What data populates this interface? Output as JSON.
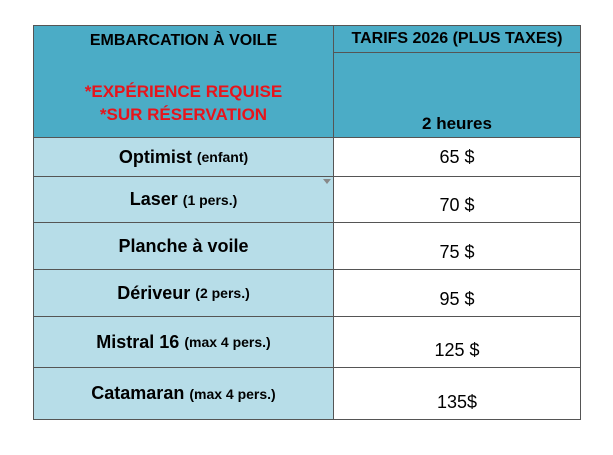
{
  "header": {
    "left_title": "EMBARCATION À VOILE",
    "notes": [
      "*EXPÉRIENCE REQUISE",
      "*SUR RÉSERVATION"
    ],
    "right_title": "TARIFS 2026 (PLUS TAXES)",
    "duration": "2 heures"
  },
  "table": {
    "rows": [
      {
        "name": "Optimist",
        "detail": "(enfant)",
        "price": "65 $"
      },
      {
        "name": "Laser",
        "detail": "(1 pers.)",
        "price": "70 $"
      },
      {
        "name": "Planche à voile",
        "detail": null,
        "price": "75 $"
      },
      {
        "name": "Dériveur",
        "detail": "(2 pers.)",
        "price": "95 $"
      },
      {
        "name": "Mistral 16",
        "detail": "(max 4 pers.)",
        "price": "125 $"
      },
      {
        "name": "Catamaran",
        "detail": "(max 4 pers.)",
        "price": "135$"
      }
    ]
  }
}
